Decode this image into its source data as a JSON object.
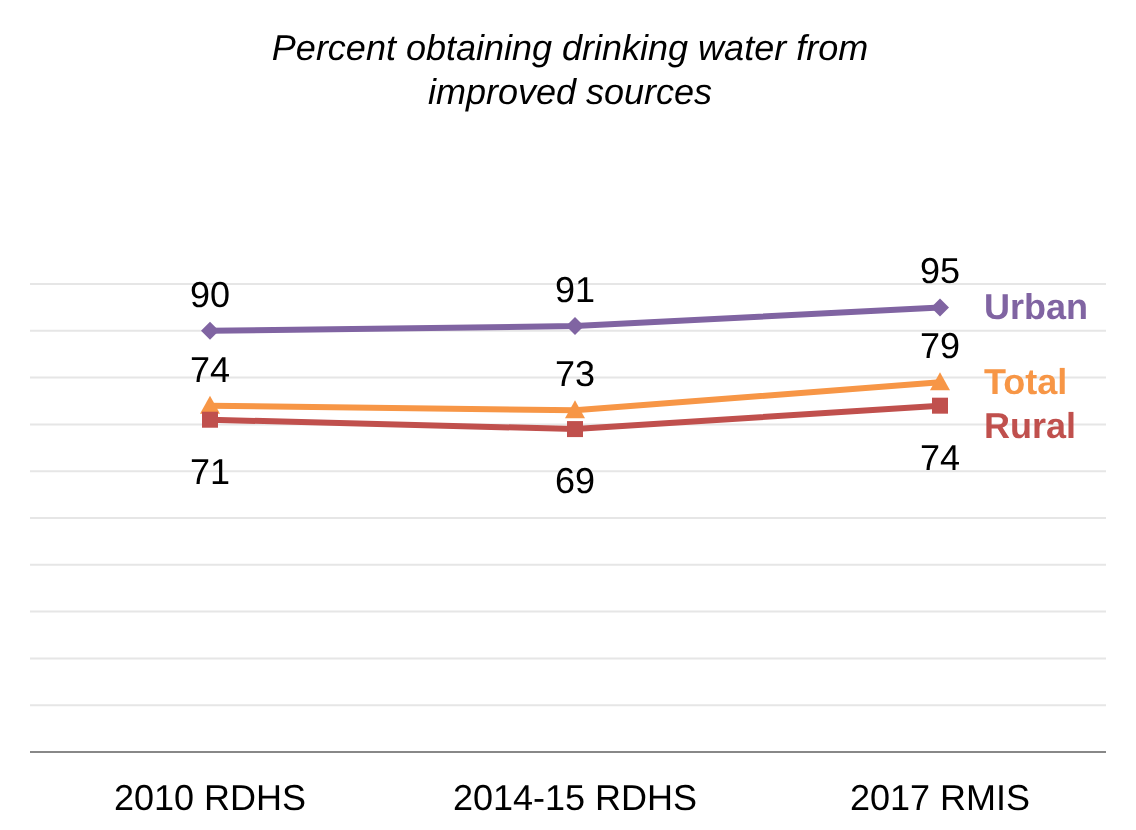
{
  "chart_data": {
    "type": "line",
    "title": "Percent obtaining drinking water from improved sources",
    "categories": [
      "2010 RDHS",
      "2014-15 RDHS",
      "2017 RMIS"
    ],
    "series": [
      {
        "name": "Urban",
        "color": "#8064a2",
        "values": [
          90,
          91,
          95
        ],
        "marker": "diamond"
      },
      {
        "name": "Total",
        "color": "#f79646",
        "values": [
          74,
          73,
          79
        ],
        "marker": "triangle"
      },
      {
        "name": "Rural",
        "color": "#c0504d",
        "values": [
          71,
          69,
          74
        ],
        "marker": "square"
      }
    ],
    "ylim": [
      0,
      100
    ],
    "yticks": [
      {
        "value": 0,
        "label": null
      },
      {
        "value": 10,
        "label": null
      },
      {
        "value": 20,
        "label": null
      },
      {
        "value": 30,
        "label": null
      },
      {
        "value": 40,
        "label": null
      },
      {
        "value": 50,
        "label": null
      },
      {
        "value": 60,
        "label": null
      },
      {
        "value": 70,
        "label": null
      },
      {
        "value": 80,
        "label": null
      },
      {
        "value": 90,
        "label": null
      },
      {
        "value": 100,
        "label": null
      }
    ],
    "grid": "y",
    "tick_labels": "x",
    "data_labels": true
  }
}
